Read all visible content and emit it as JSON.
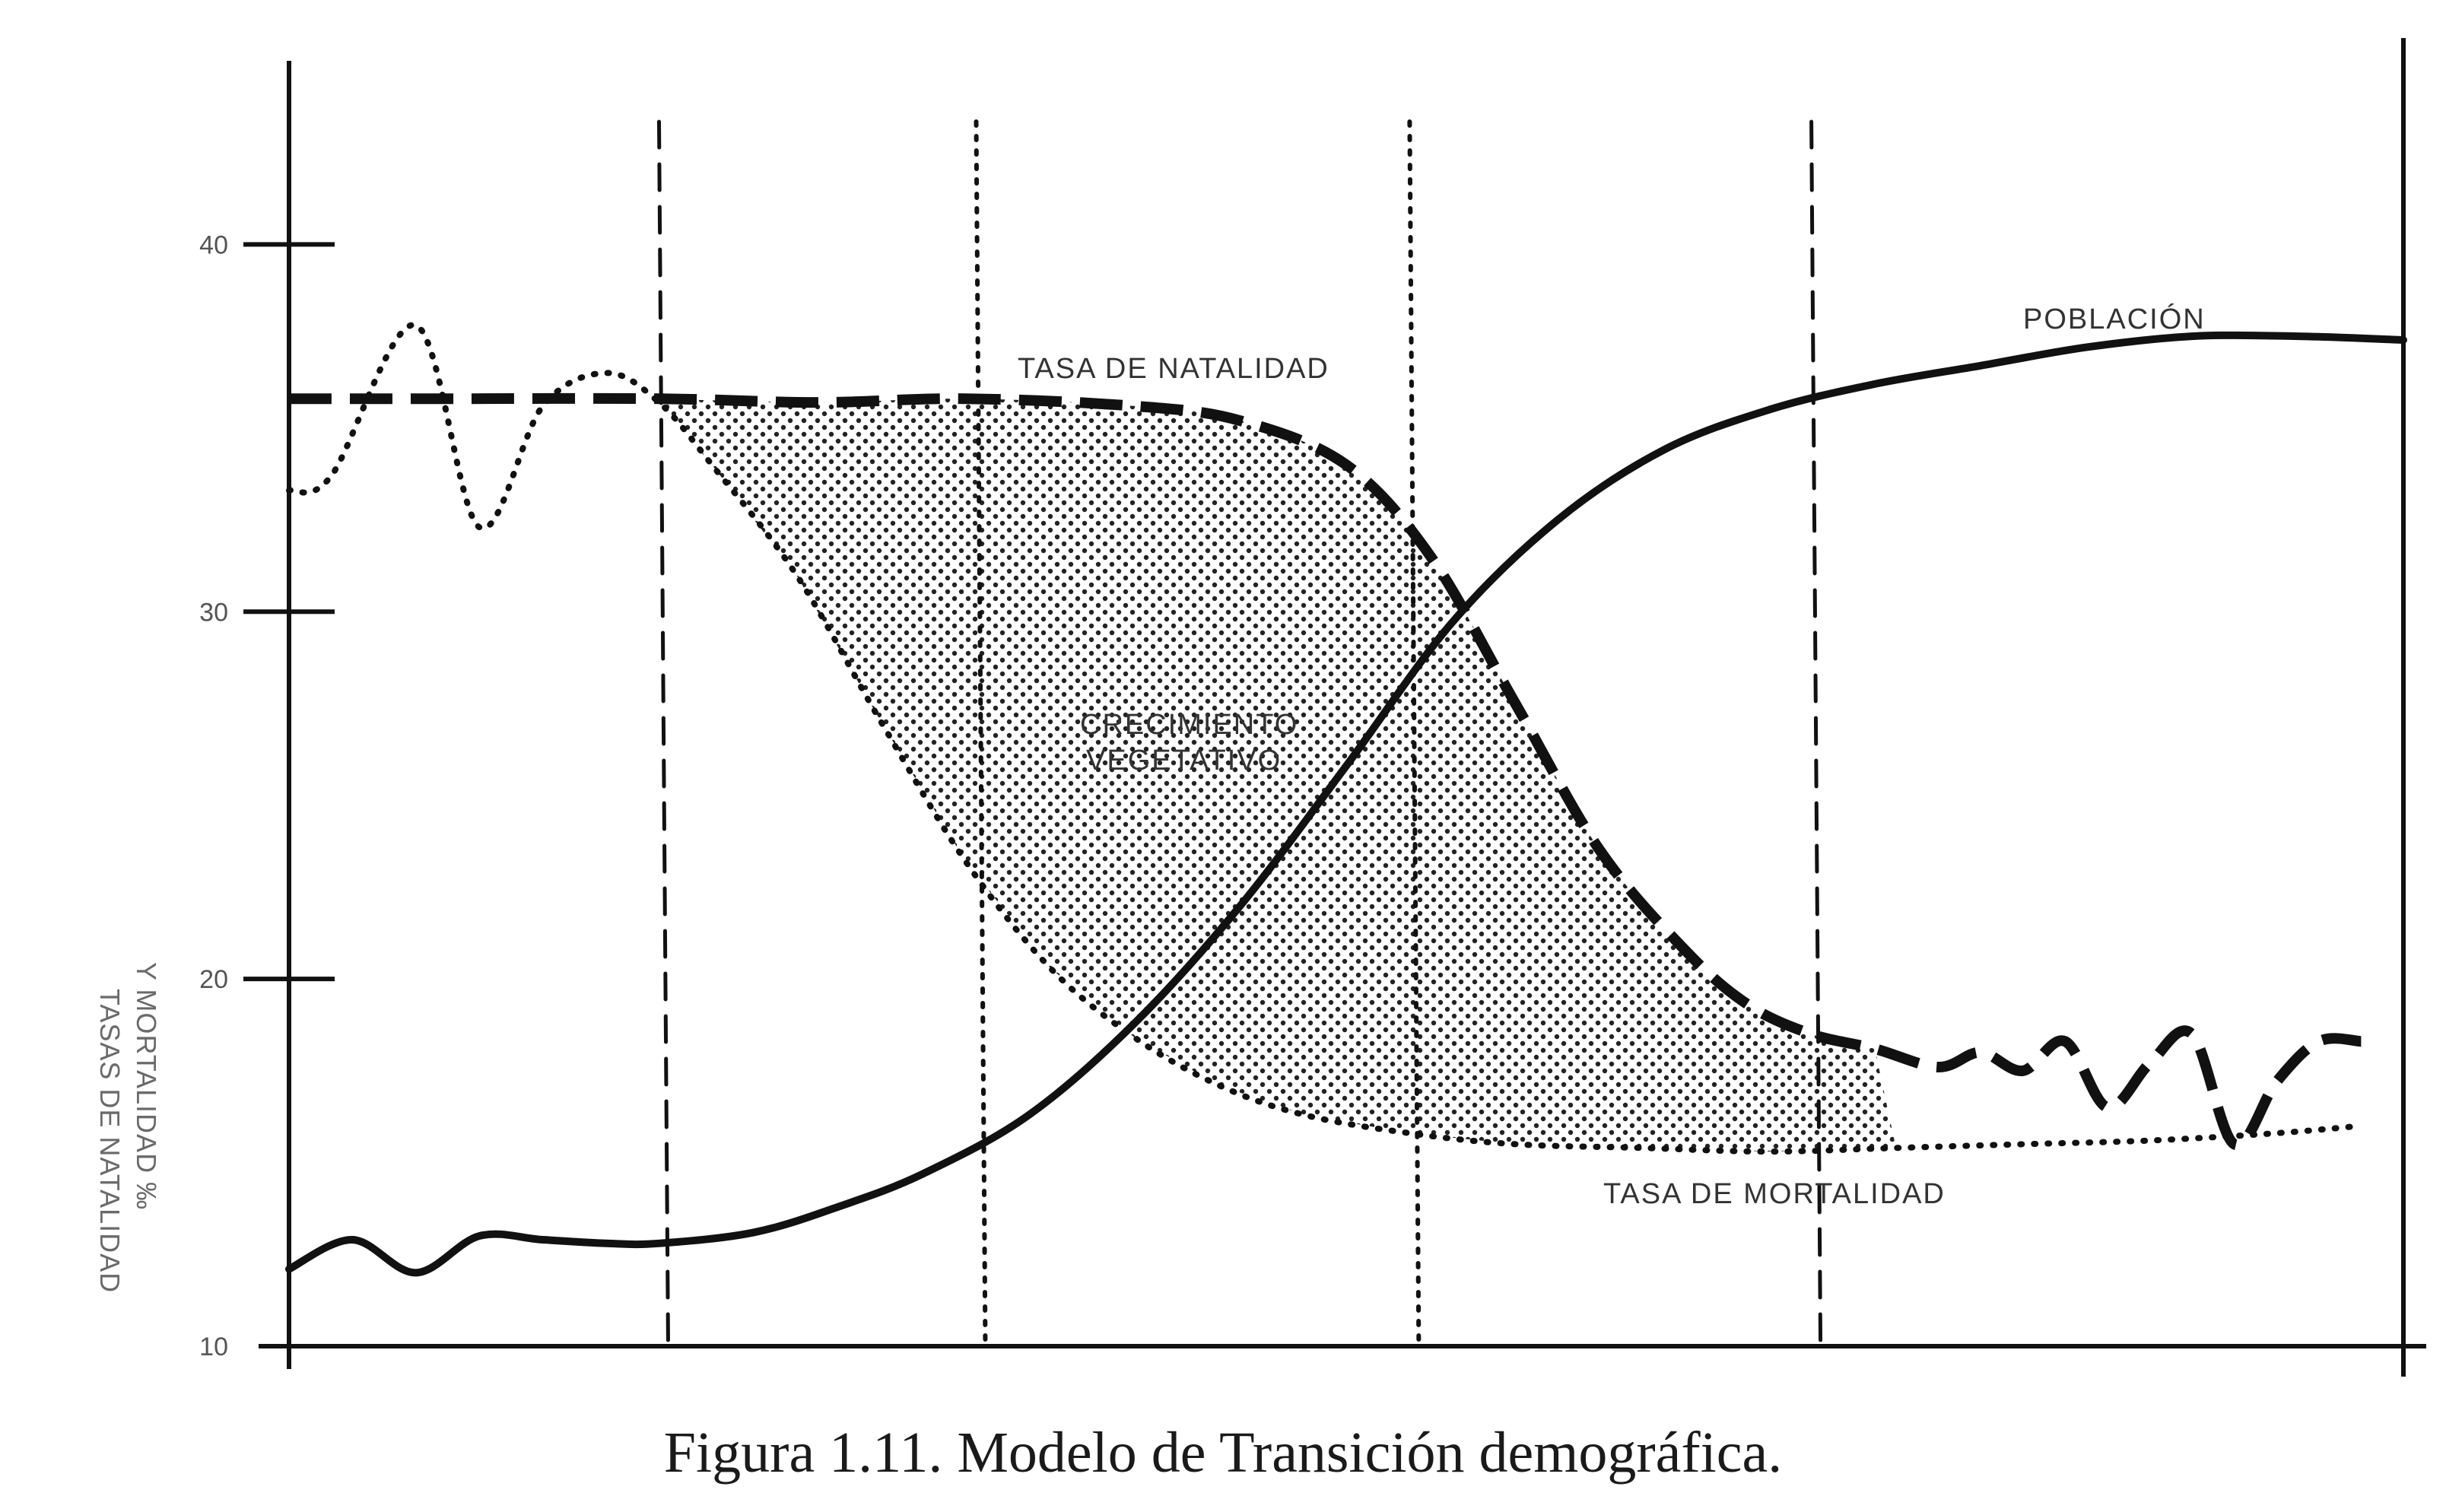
{
  "chart_data": {
    "type": "line",
    "caption": "Figura 1.11.  Modelo de Transición demográfica.",
    "ylabel": [
      "TASAS DE NATALIDAD",
      "Y MORTALIDAD ‰"
    ],
    "xlabel": "",
    "ylim": [
      10,
      45
    ],
    "y_ticks": [
      "40",
      "30",
      "20",
      "10"
    ],
    "xlim": [
      0,
      100
    ],
    "phase_boundaries": [
      {
        "x": 17.5,
        "style": "dashed"
      },
      {
        "x": 32.5,
        "style": "dotted"
      },
      {
        "x": 53,
        "style": "dotted"
      },
      {
        "x": 72,
        "style": "dashed"
      }
    ],
    "region_label": [
      "CRECIMIENTO",
      "VEGETATIVO"
    ],
    "series": [
      {
        "name": "TASA DE NATALIDAD",
        "style": "dashed",
        "x": [
          0,
          8,
          17.5,
          25,
          32,
          40,
          45,
          50,
          54,
          58,
          62,
          66,
          69,
          72,
          75,
          78,
          80,
          82,
          84,
          86,
          88,
          90,
          92,
          94,
          96,
          98
        ],
        "y": [
          35.8,
          35.8,
          35.8,
          35.7,
          35.8,
          35.6,
          35.2,
          34,
          31.5,
          27.5,
          23.5,
          20.8,
          19.3,
          18.5,
          18.1,
          17.6,
          18,
          17.5,
          18.3,
          16.5,
          17.7,
          18.5,
          15.5,
          17.2,
          18.3,
          18.3
        ]
      },
      {
        "name": "TASA DE MORTALIDAD",
        "style": "dotted",
        "x": [
          0,
          2,
          6,
          9,
          12,
          15,
          17.5,
          20,
          24,
          28,
          32,
          36,
          40,
          44,
          48,
          53,
          58,
          64,
          70,
          76,
          82,
          88,
          94,
          98
        ],
        "y": [
          33.3,
          33.7,
          37.8,
          32.3,
          35.6,
          36.5,
          35.7,
          34,
          31,
          27,
          23.2,
          20.3,
          18.4,
          17.1,
          16.3,
          15.8,
          15.5,
          15.4,
          15.3,
          15.4,
          15.5,
          15.6,
          15.8,
          16
        ]
      },
      {
        "name": "POBLACIÓN",
        "style": "solid",
        "x": [
          0,
          3,
          6,
          9,
          12,
          15,
          17.5,
          22,
          26,
          30,
          35,
          40,
          45,
          50,
          55,
          60,
          65,
          70,
          75,
          80,
          85,
          90,
          95,
          100
        ],
        "y": [
          12.1,
          12.9,
          12.0,
          13.0,
          12.9,
          12.8,
          12.8,
          13.1,
          13.8,
          14.7,
          16.3,
          18.8,
          22.0,
          25.8,
          29.7,
          32.5,
          34.4,
          35.5,
          36.2,
          36.7,
          37.2,
          37.5,
          37.5,
          37.4
        ]
      }
    ]
  }
}
